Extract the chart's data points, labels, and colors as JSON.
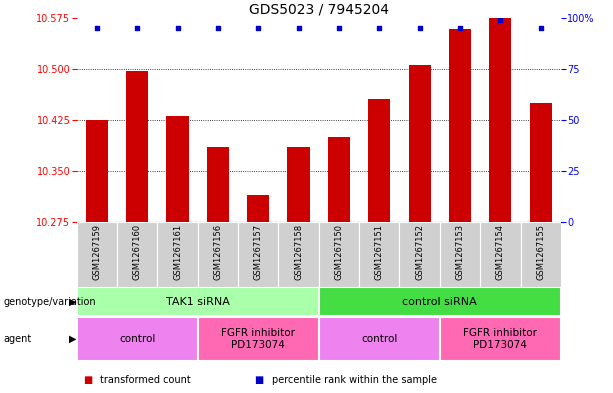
{
  "title": "GDS5023 / 7945204",
  "samples": [
    "GSM1267159",
    "GSM1267160",
    "GSM1267161",
    "GSM1267156",
    "GSM1267157",
    "GSM1267158",
    "GSM1267150",
    "GSM1267151",
    "GSM1267152",
    "GSM1267153",
    "GSM1267154",
    "GSM1267155"
  ],
  "red_values": [
    10.425,
    10.497,
    10.43,
    10.385,
    10.315,
    10.385,
    10.4,
    10.455,
    10.505,
    10.558,
    10.575,
    10.45
  ],
  "blue_values": [
    95,
    95,
    95,
    95,
    95,
    95,
    95,
    95,
    95,
    95,
    99,
    95
  ],
  "ylim_left": [
    10.275,
    10.575
  ],
  "ylim_right": [
    0,
    100
  ],
  "yticks_left": [
    10.275,
    10.35,
    10.425,
    10.5,
    10.575
  ],
  "yticks_right": [
    0,
    25,
    50,
    75,
    100
  ],
  "ytick_labels_right": [
    "0",
    "25",
    "50",
    "75",
    "100%"
  ],
  "grid_values": [
    10.35,
    10.425,
    10.5
  ],
  "genotype_groups": [
    {
      "label": "TAK1 siRNA",
      "start": 0,
      "end": 6,
      "color": "#AAFFAA"
    },
    {
      "label": "control siRNA",
      "start": 6,
      "end": 12,
      "color": "#44DD44"
    }
  ],
  "agent_groups": [
    {
      "label": "control",
      "start": 0,
      "end": 3,
      "color": "#EE82EE"
    },
    {
      "label": "FGFR inhibitor\nPD173074",
      "start": 3,
      "end": 6,
      "color": "#FF69B4"
    },
    {
      "label": "control",
      "start": 6,
      "end": 9,
      "color": "#EE82EE"
    },
    {
      "label": "FGFR inhibitor\nPD173074",
      "start": 9,
      "end": 12,
      "color": "#FF69B4"
    }
  ],
  "legend_items": [
    {
      "color": "#CC0000",
      "label": "transformed count"
    },
    {
      "color": "#0000CC",
      "label": "percentile rank within the sample"
    }
  ],
  "bar_color": "#CC0000",
  "dot_color": "#0000CC",
  "title_fontsize": 10,
  "tick_fontsize": 7,
  "label_fontsize": 8,
  "sample_fontsize": 6,
  "bar_width": 0.55
}
